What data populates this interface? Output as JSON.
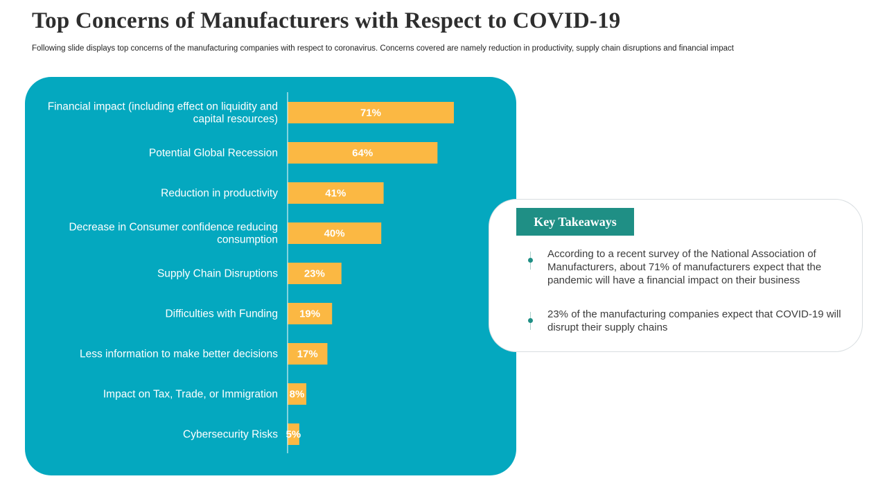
{
  "slide": {
    "title": "Top Concerns of Manufacturers with Respect to COVID-19",
    "subtitle": "Following slide displays top concerns of the manufacturing companies with respect to coronavirus. Concerns covered are namely reduction in productivity, supply chain disruptions and financial impact"
  },
  "colors": {
    "panel": "#04a8bf",
    "bar": "#fbb843",
    "accent": "#1f8f85",
    "text": "#2e2e2e"
  },
  "chart_data": {
    "type": "bar",
    "orientation": "horizontal",
    "title": "",
    "xlabel": "",
    "ylabel": "",
    "xlim": [
      0,
      100
    ],
    "grid": false,
    "categories": [
      [
        "Financial impact (including effect on liquidity and",
        "capital resources)"
      ],
      [
        "Potential Global Recession"
      ],
      [
        "Reduction  in productivity"
      ],
      [
        "Decrease in Consumer confidence reducing",
        "consumption"
      ],
      [
        "Supply Chain Disruptions"
      ],
      [
        "Difficulties with Funding"
      ],
      [
        "Less information to make better decisions"
      ],
      [
        "Impact on Tax, Trade, or Immigration"
      ],
      [
        "Cybersecurity Risks"
      ]
    ],
    "values": [
      71,
      64,
      41,
      40,
      23,
      19,
      17,
      8,
      5
    ],
    "value_labels": [
      "71%",
      "64%",
      "41%",
      "40%",
      "23%",
      "19%",
      "17%",
      "8%",
      "5%"
    ],
    "unit": "%"
  },
  "takeaways": {
    "heading": "Key Takeaways",
    "items": [
      "According to a recent survey  of the National Association of Manufacturers,  about 71% of manufacturers  expect that the pandemic will have a financial impact on their business",
      "23% of the manufacturing  companies expect that COVID-19 will disrupt their supply chains"
    ]
  }
}
